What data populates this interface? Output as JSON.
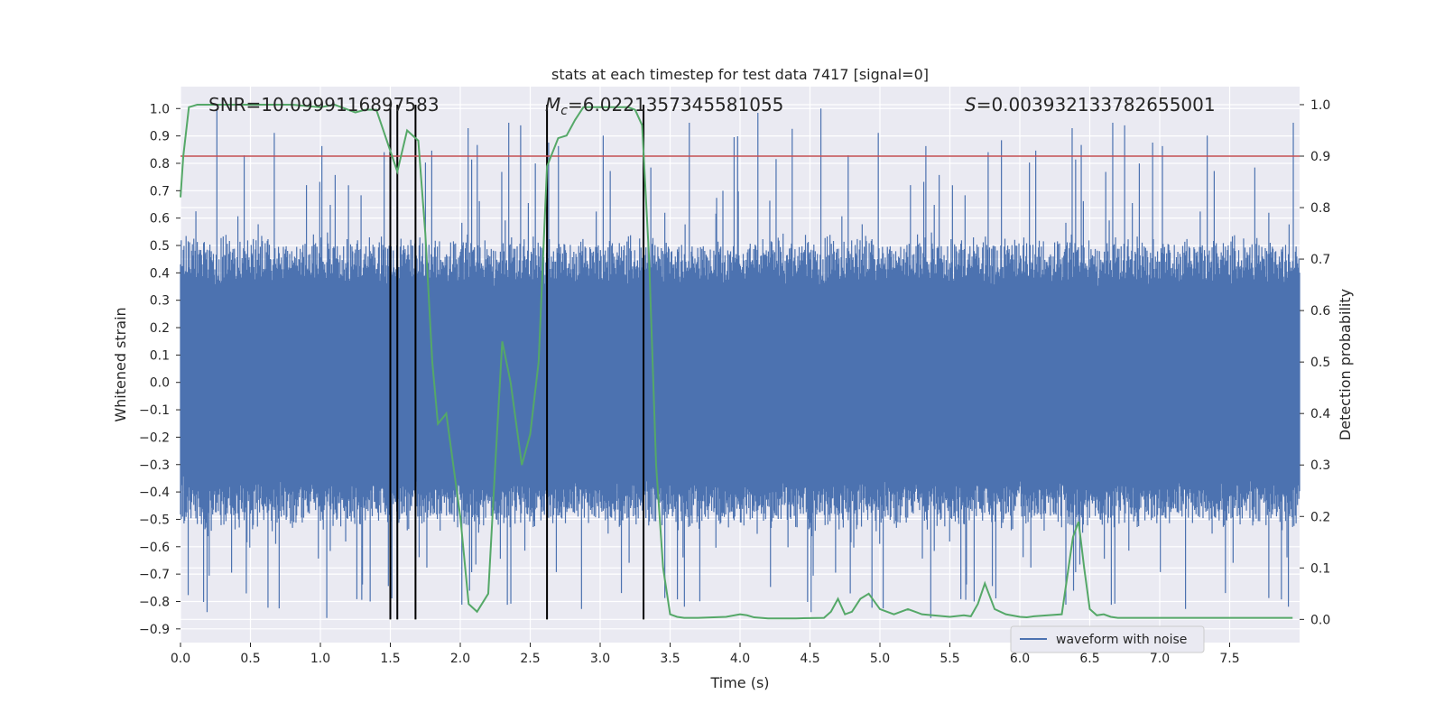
{
  "chart_data": {
    "type": "line",
    "title": "stats at each timestep for test data 7417 [signal=0]",
    "xlabel": "Time (s)",
    "ylabel_left": "Whitened strain",
    "ylabel_right": "Detection probability",
    "xlim": [
      0.0,
      8.0
    ],
    "ylim_left": [
      -0.95,
      1.08
    ],
    "ylim_right": [
      -0.045,
      1.035
    ],
    "xticks": [
      "0.0",
      "0.5",
      "1.0",
      "1.5",
      "2.0",
      "2.5",
      "3.0",
      "3.5",
      "4.0",
      "4.5",
      "5.0",
      "5.5",
      "6.0",
      "6.5",
      "7.0",
      "7.5"
    ],
    "xtick_values": [
      0.0,
      0.5,
      1.0,
      1.5,
      2.0,
      2.5,
      3.0,
      3.5,
      4.0,
      4.5,
      5.0,
      5.5,
      6.0,
      6.5,
      7.0,
      7.5
    ],
    "yticks_left": [
      "1.0",
      "0.9",
      "0.8",
      "0.7",
      "0.6",
      "0.5",
      "0.4",
      "0.3",
      "0.2",
      "0.1",
      "0.0",
      "−0.1",
      "−0.2",
      "−0.3",
      "−0.4",
      "−0.5",
      "−0.6",
      "−0.7",
      "−0.8",
      "−0.9"
    ],
    "ytick_values_left": [
      1.0,
      0.9,
      0.8,
      0.7,
      0.6,
      0.5,
      0.4,
      0.3,
      0.2,
      0.1,
      0.0,
      -0.1,
      -0.2,
      -0.3,
      -0.4,
      -0.5,
      -0.6,
      -0.7,
      -0.8,
      -0.9
    ],
    "yticks_right": [
      "1.0",
      "0.9",
      "0.8",
      "0.7",
      "0.6",
      "0.5",
      "0.4",
      "0.3",
      "0.2",
      "0.1",
      "0.0"
    ],
    "ytick_values_right": [
      1.0,
      0.9,
      0.8,
      0.7,
      0.6,
      0.5,
      0.4,
      0.3,
      0.2,
      0.1,
      0.0
    ],
    "grid": true,
    "legend": {
      "entries": [
        "waveform with noise"
      ],
      "placement": "lower-right"
    },
    "annotations": {
      "snr": "SNR=10.0999116897583",
      "mc_symbol": "M",
      "mc_sub": "c",
      "mc_value": "=6.0221357345581055",
      "s_symbol": "S",
      "s_value": "=0.003932133782655001"
    },
    "threshold_line": {
      "axis": "right",
      "value": 0.9,
      "color": "#c44e52"
    },
    "vertical_markers": [
      1.5,
      1.55,
      1.68,
      2.62,
      3.31
    ],
    "waveform": {
      "name": "waveform with noise",
      "color": "#4c72b0",
      "x_start": 0.0,
      "x_end": 8.0,
      "samples": 1600,
      "typical_amplitude": 0.45,
      "peak_amplitude": 1.0
    },
    "probability_series": {
      "color": "#55a868",
      "x": [
        0.0,
        0.02,
        0.06,
        0.12,
        0.3,
        0.5,
        0.8,
        1.0,
        1.1,
        1.25,
        1.32,
        1.4,
        1.45,
        1.5,
        1.55,
        1.62,
        1.7,
        1.75,
        1.8,
        1.84,
        1.9,
        1.95,
        2.0,
        2.06,
        2.12,
        2.2,
        2.25,
        2.3,
        2.36,
        2.44,
        2.5,
        2.56,
        2.62,
        2.7,
        2.76,
        2.82,
        2.88,
        3.0,
        3.1,
        3.2,
        3.25,
        3.3,
        3.35,
        3.4,
        3.45,
        3.5,
        3.55,
        3.6,
        3.7,
        3.9,
        4.0,
        4.05,
        4.1,
        4.2,
        4.4,
        4.6,
        4.65,
        4.7,
        4.75,
        4.8,
        4.86,
        4.92,
        5.0,
        5.05,
        5.1,
        5.2,
        5.3,
        5.5,
        5.6,
        5.65,
        5.7,
        5.75,
        5.82,
        5.9,
        6.0,
        6.05,
        6.1,
        6.2,
        6.3,
        6.38,
        6.42,
        6.46,
        6.5,
        6.55,
        6.6,
        6.65,
        6.7,
        6.8,
        7.0,
        7.5,
        7.95
      ],
      "y": [
        0.82,
        0.9,
        0.995,
        1.0,
        1.0,
        1.0,
        1.0,
        0.995,
        1.0,
        0.985,
        0.99,
        0.99,
        0.95,
        0.91,
        0.87,
        0.95,
        0.93,
        0.75,
        0.5,
        0.38,
        0.4,
        0.3,
        0.2,
        0.03,
        0.015,
        0.05,
        0.3,
        0.54,
        0.46,
        0.3,
        0.36,
        0.5,
        0.88,
        0.935,
        0.94,
        0.97,
        0.995,
        0.995,
        0.995,
        0.995,
        0.99,
        0.96,
        0.7,
        0.3,
        0.1,
        0.01,
        0.005,
        0.003,
        0.003,
        0.005,
        0.01,
        0.008,
        0.004,
        0.002,
        0.002,
        0.003,
        0.015,
        0.04,
        0.01,
        0.015,
        0.04,
        0.05,
        0.02,
        0.015,
        0.01,
        0.02,
        0.01,
        0.005,
        0.008,
        0.006,
        0.03,
        0.07,
        0.02,
        0.01,
        0.005,
        0.004,
        0.006,
        0.008,
        0.01,
        0.16,
        0.19,
        0.1,
        0.02,
        0.008,
        0.01,
        0.005,
        0.003,
        0.003,
        0.003,
        0.003,
        0.003
      ]
    }
  }
}
